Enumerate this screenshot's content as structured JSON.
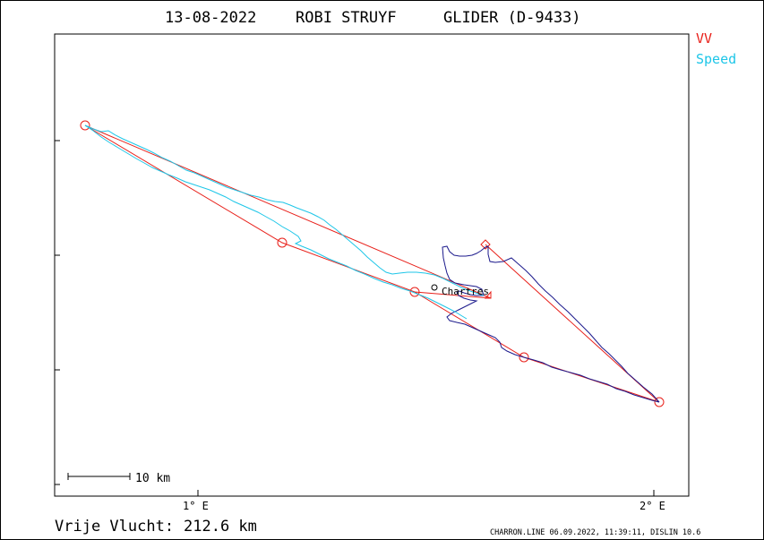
{
  "header": {
    "date": "13-08-2022",
    "pilot": "ROBI STRUYF",
    "aircraft": "GLIDER (D-9433)"
  },
  "legend": [
    {
      "label": "VV",
      "color": "#e8201a"
    },
    {
      "label": "Speed",
      "color": "#1ec6e8"
    }
  ],
  "axes": {
    "x_ticks": [
      {
        "label": "1° E",
        "lon": 1.0
      },
      {
        "label": "2° E",
        "lon": 2.0
      }
    ],
    "lon_range": [
      0.69,
      2.07
    ]
  },
  "scale_bar": {
    "label": "10 km"
  },
  "place": {
    "name": "Chartres"
  },
  "footer": {
    "distance_label": "Vrije Vlucht:",
    "distance_value": "212.6 km",
    "credits": "CHARRON.LINE 06.09.2022, 11:39:11, DISLIN 10.6"
  },
  "colors": {
    "task": "#e8201a",
    "track_fast": "#1ec6e8",
    "track_slow": "#1c1a8c"
  },
  "task_turnpoints": 6
}
